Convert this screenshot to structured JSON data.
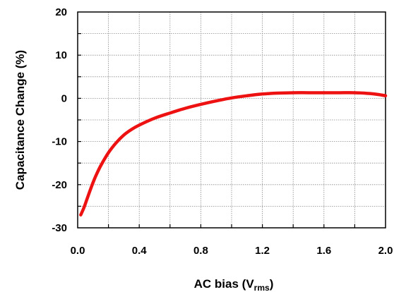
{
  "chart_data": {
    "type": "line",
    "xlabel": "AC bias (V",
    "xlabel_subscript": "rms",
    "xlabel_suffix": ")",
    "ylabel": "Capacitance Change (%)",
    "xlim": [
      0.0,
      2.0
    ],
    "ylim": [
      -30,
      20
    ],
    "x_ticks": [
      "0.0",
      "0.4",
      "0.8",
      "1.2",
      "1.6",
      "2.0"
    ],
    "y_ticks": [
      "20",
      "10",
      "0",
      "-10",
      "-20",
      "-30"
    ],
    "grid": true,
    "series": [
      {
        "color": "#ee1111",
        "x": [
          0.02,
          0.04,
          0.06,
          0.08,
          0.1,
          0.12,
          0.15,
          0.2,
          0.25,
          0.3,
          0.35,
          0.4,
          0.5,
          0.6,
          0.7,
          0.8,
          0.9,
          1.0,
          1.1,
          1.2,
          1.3,
          1.4,
          1.5,
          1.6,
          1.7,
          1.8,
          1.9,
          1.95,
          2.0
        ],
        "y": [
          -27.0,
          -25.4,
          -23.4,
          -21.4,
          -19.5,
          -17.8,
          -15.6,
          -12.6,
          -10.3,
          -8.5,
          -7.2,
          -6.2,
          -4.6,
          -3.4,
          -2.3,
          -1.4,
          -0.6,
          0.1,
          0.6,
          1.0,
          1.2,
          1.3,
          1.3,
          1.3,
          1.3,
          1.3,
          1.1,
          0.9,
          0.6
        ]
      }
    ]
  }
}
